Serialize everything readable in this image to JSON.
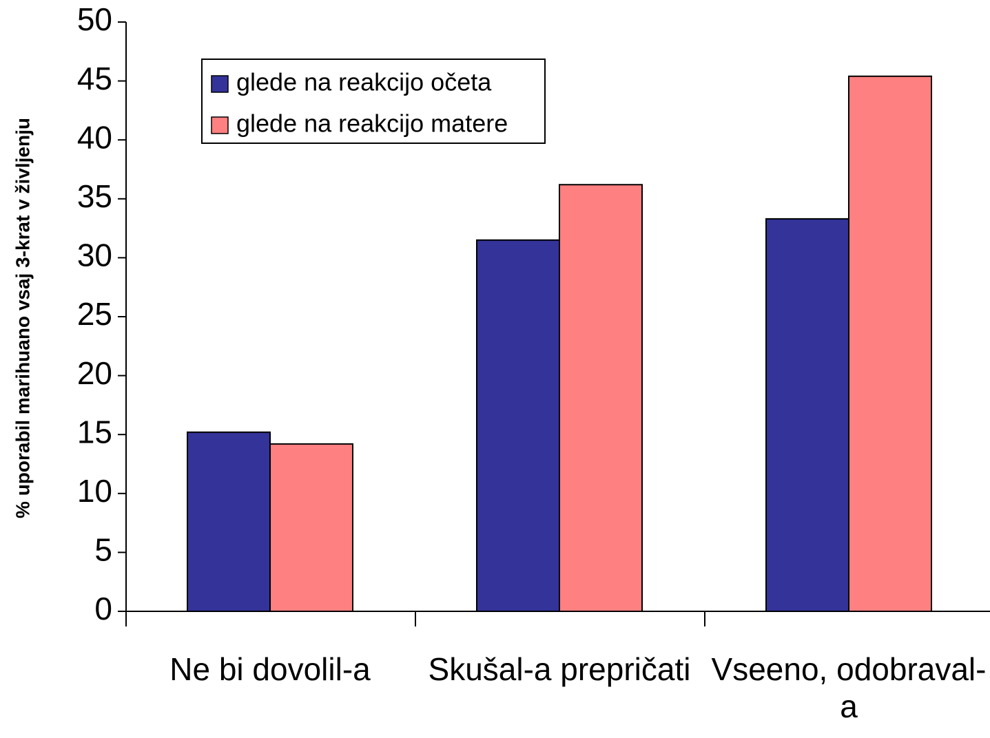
{
  "chart_data": {
    "type": "bar",
    "y_axis_label": "% uporabil marihuano vsaj 3-krat v življenju",
    "categories": [
      "Ne bi dovolil-a",
      "Skušal-a prepričati",
      "Vseeno, odobraval-a"
    ],
    "series": [
      {
        "name": "glede na reakcijo očeta",
        "color": "#333399",
        "values": [
          15.2,
          31.5,
          33.3
        ]
      },
      {
        "name": "glede na reakcijo matere",
        "color": "#ff8080",
        "values": [
          14.2,
          36.2,
          45.4
        ]
      }
    ],
    "ylim": [
      0,
      50
    ],
    "yticks": [
      0,
      5,
      10,
      15,
      20,
      25,
      30,
      35,
      40,
      45,
      50
    ],
    "legend": "top-left",
    "grid": false
  }
}
